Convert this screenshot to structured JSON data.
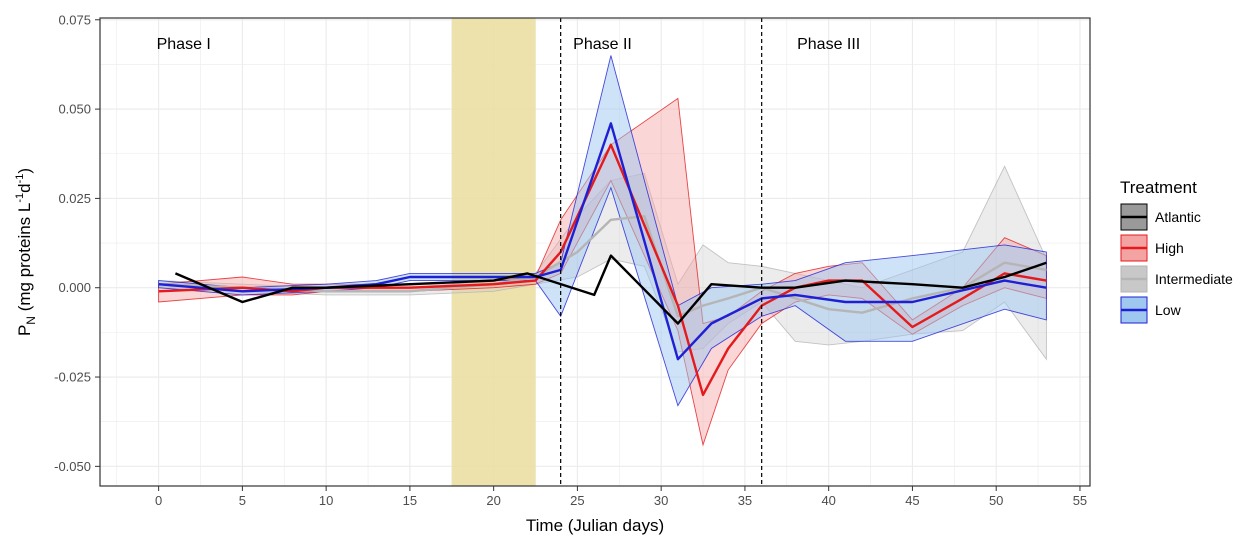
{
  "chart_data": {
    "type": "line",
    "title": "",
    "xlabel": "Time (Julian days)",
    "ylabel": {
      "main": "P",
      "sub": "N",
      "rest": " (mg proteins L",
      "sup1": "-1",
      "mid": "d",
      "sup2": "-1",
      "end": ")"
    },
    "xlim": [
      -3.5,
      55.6
    ],
    "ylim": [
      -0.0555,
      0.0755
    ],
    "x_ticks": [
      0,
      5,
      10,
      15,
      20,
      25,
      30,
      35,
      40,
      45,
      50,
      55
    ],
    "y_ticks": [
      -0.05,
      -0.025,
      0.0,
      0.025,
      0.05,
      0.075
    ],
    "y_tick_labels": [
      "-0.050",
      "-0.025",
      "0.000",
      "0.025",
      "0.050",
      "0.075"
    ],
    "grid": true,
    "shaded_period": {
      "x0": 17.5,
      "x1": 22.5,
      "color": "#ecdfa3"
    },
    "phase_lines": [
      24,
      36
    ],
    "phase_labels": [
      {
        "text": "Phase I",
        "x": 1.5
      },
      {
        "text": "Phase II",
        "x": 26.5
      },
      {
        "text": "Phase III",
        "x": 40
      }
    ],
    "legend": {
      "title": "Treatment",
      "position": "right"
    },
    "series": [
      {
        "name": "Intermediate",
        "line_color": "#b5b5b5",
        "fill_color": "#c8c8c8",
        "fill_opacity": 0.35,
        "x": [
          0,
          5,
          10,
          15,
          20,
          22.5,
          25,
          27,
          29,
          31,
          32.5,
          34,
          36,
          38,
          40,
          42,
          45,
          48,
          50.5,
          53
        ],
        "y": [
          0.001,
          0.0,
          -0.001,
          -0.001,
          0.001,
          0.003,
          0.01,
          0.019,
          0.02,
          -0.008,
          -0.005,
          -0.003,
          0.0,
          -0.003,
          -0.006,
          -0.007,
          -0.003,
          0.0,
          0.007,
          0.005
        ],
        "lower": [
          0.0,
          -0.001,
          -0.002,
          -0.002,
          -0.001,
          0.001,
          0.003,
          0.008,
          0.006,
          -0.018,
          -0.017,
          -0.01,
          -0.004,
          -0.015,
          -0.016,
          -0.015,
          -0.013,
          -0.012,
          -0.004,
          -0.02
        ],
        "upper": [
          0.002,
          0.001,
          0.0,
          0.0,
          0.002,
          0.004,
          0.02,
          0.03,
          0.032,
          0.001,
          0.012,
          0.007,
          0.006,
          0.004,
          0.002,
          0.0,
          0.005,
          0.01,
          0.034,
          0.008
        ]
      },
      {
        "name": "High",
        "line_color": "#e41a1c",
        "fill_color": "#f4a3a3",
        "fill_opacity": 0.45,
        "x": [
          0,
          5,
          8,
          10,
          15,
          20,
          22.5,
          24,
          27,
          31,
          32.5,
          34,
          36,
          38,
          40,
          42,
          45,
          48,
          50.5,
          53
        ],
        "y": [
          -0.001,
          0.0,
          -0.001,
          0.0,
          0.0,
          0.001,
          0.002,
          0.01,
          0.04,
          -0.005,
          -0.03,
          -0.017,
          -0.005,
          0.0,
          0.002,
          0.002,
          -0.011,
          -0.003,
          0.004,
          0.002
        ],
        "lower": [
          -0.004,
          -0.002,
          -0.002,
          -0.001,
          -0.001,
          0.0,
          0.001,
          0.004,
          0.03,
          -0.012,
          -0.044,
          -0.023,
          -0.01,
          -0.004,
          -0.002,
          -0.003,
          -0.013,
          -0.005,
          0.0,
          -0.003
        ],
        "upper": [
          0.001,
          0.003,
          0.001,
          0.001,
          0.001,
          0.002,
          0.003,
          0.019,
          0.04,
          0.053,
          -0.01,
          -0.008,
          -0.001,
          0.004,
          0.006,
          0.007,
          -0.009,
          0.0,
          0.014,
          0.009
        ]
      },
      {
        "name": "Low",
        "line_color": "#1f1fd4",
        "fill_color": "#9ec8ef",
        "fill_opacity": 0.5,
        "x": [
          0,
          5,
          10,
          13,
          15,
          20,
          22.5,
          24,
          27,
          31,
          33,
          36,
          38,
          41,
          45,
          50.5,
          53
        ],
        "y": [
          0.001,
          -0.001,
          0.0,
          0.001,
          0.003,
          0.003,
          0.003,
          0.005,
          0.046,
          -0.02,
          -0.01,
          -0.003,
          -0.002,
          -0.004,
          -0.004,
          0.002,
          0.0
        ],
        "lower": [
          0.0,
          -0.002,
          -0.001,
          0.0,
          0.002,
          0.002,
          0.002,
          -0.008,
          0.028,
          -0.033,
          -0.017,
          -0.008,
          -0.005,
          -0.015,
          -0.015,
          -0.006,
          -0.009
        ],
        "upper": [
          0.002,
          0.0,
          0.001,
          0.002,
          0.004,
          0.004,
          0.004,
          0.007,
          0.065,
          -0.005,
          0.0,
          0.001,
          0.002,
          0.007,
          0.009,
          0.012,
          0.01
        ]
      },
      {
        "name": "Atlantic",
        "line_color": "#000000",
        "fill_color": "#555555",
        "fill_opacity": 0.0,
        "x": [
          1,
          5,
          8,
          10,
          15,
          20,
          22,
          26,
          27,
          31,
          33,
          36,
          38,
          41,
          45,
          48,
          50.5,
          53
        ],
        "y": [
          0.004,
          -0.004,
          0.0,
          0.0,
          0.001,
          0.002,
          0.004,
          -0.002,
          0.009,
          -0.01,
          0.001,
          0.0,
          0.0,
          0.002,
          0.001,
          0.0,
          0.003,
          0.007
        ]
      }
    ]
  }
}
